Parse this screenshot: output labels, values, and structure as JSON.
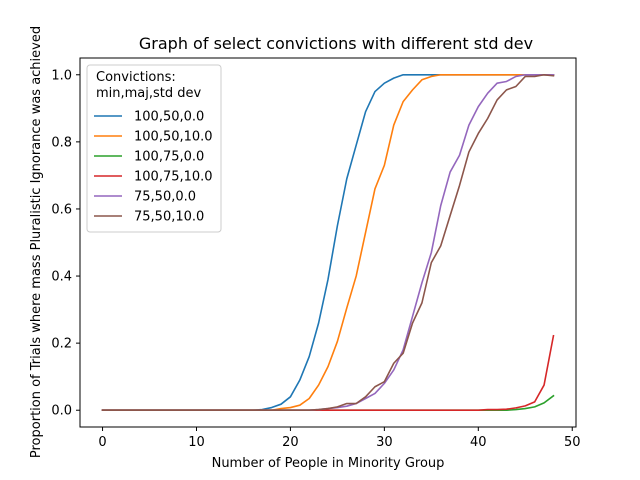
{
  "chart_data": {
    "type": "line",
    "title": "Graph of select convictions with different std dev",
    "xlabel": "Number of People in Minority Group",
    "ylabel": "Proportion of Trials where mass Pluralistic Ignorance was achieved",
    "xlim": [
      -2.4,
      50.4
    ],
    "ylim": [
      -0.05,
      1.05
    ],
    "xticks": [
      0,
      10,
      20,
      30,
      40,
      50
    ],
    "yticks": [
      0.0,
      0.2,
      0.4,
      0.6,
      0.8,
      1.0
    ],
    "grid": false,
    "legend": {
      "placement": "upper-left",
      "title_line1": "Convictions:",
      "title_line2": "min,maj,std dev"
    },
    "series": [
      {
        "name": "100,50,0.0",
        "color": "#1f77b4",
        "x": [
          0,
          1,
          2,
          3,
          4,
          5,
          6,
          7,
          8,
          9,
          10,
          11,
          12,
          13,
          14,
          15,
          16,
          17,
          18,
          19,
          20,
          21,
          22,
          23,
          24,
          25,
          26,
          27,
          28,
          29,
          30,
          31,
          32,
          33,
          34,
          35,
          36,
          37,
          38,
          39,
          40,
          41,
          42,
          43,
          44,
          45,
          46,
          47,
          48
        ],
        "y": [
          0,
          0,
          0,
          0,
          0,
          0,
          0,
          0,
          0,
          0,
          0,
          0,
          0,
          0,
          0,
          0,
          0,
          0.002,
          0.008,
          0.018,
          0.04,
          0.09,
          0.16,
          0.26,
          0.39,
          0.55,
          0.69,
          0.79,
          0.89,
          0.95,
          0.975,
          0.99,
          1.0,
          1.0,
          1.0,
          1.0,
          1.0,
          1.0,
          1.0,
          1.0,
          1.0,
          1.0,
          1.0,
          1.0,
          1.0,
          1.0,
          1.0,
          1.0,
          1.0
        ]
      },
      {
        "name": "100,50,10.0",
        "color": "#ff7f0e",
        "x": [
          0,
          1,
          2,
          3,
          4,
          5,
          6,
          7,
          8,
          9,
          10,
          11,
          12,
          13,
          14,
          15,
          16,
          17,
          18,
          19,
          20,
          21,
          22,
          23,
          24,
          25,
          26,
          27,
          28,
          29,
          30,
          31,
          32,
          33,
          34,
          35,
          36,
          37,
          38,
          39,
          40,
          41,
          42,
          43,
          44,
          45,
          46,
          47,
          48
        ],
        "y": [
          0,
          0,
          0,
          0,
          0,
          0,
          0,
          0,
          0,
          0,
          0,
          0,
          0,
          0,
          0,
          0,
          0,
          0,
          0,
          0.005,
          0.008,
          0.015,
          0.035,
          0.075,
          0.13,
          0.205,
          0.305,
          0.4,
          0.53,
          0.66,
          0.73,
          0.85,
          0.92,
          0.955,
          0.985,
          0.995,
          1.0,
          1.0,
          1.0,
          1.0,
          1.0,
          1.0,
          1.0,
          1.0,
          1.0,
          1.0,
          1.0,
          1.0,
          1.0
        ]
      },
      {
        "name": "100,75,0.0",
        "color": "#2ca02c",
        "x": [
          0,
          1,
          2,
          3,
          4,
          5,
          6,
          7,
          8,
          9,
          10,
          11,
          12,
          13,
          14,
          15,
          16,
          17,
          18,
          19,
          20,
          21,
          22,
          23,
          24,
          25,
          26,
          27,
          28,
          29,
          30,
          31,
          32,
          33,
          34,
          35,
          36,
          37,
          38,
          39,
          40,
          41,
          42,
          43,
          44,
          45,
          46,
          47,
          48
        ],
        "y": [
          0,
          0,
          0,
          0,
          0,
          0,
          0,
          0,
          0,
          0,
          0,
          0,
          0,
          0,
          0,
          0,
          0,
          0,
          0,
          0,
          0,
          0,
          0,
          0,
          0,
          0,
          0,
          0,
          0,
          0,
          0,
          0,
          0,
          0,
          0,
          0,
          0,
          0,
          0,
          0,
          0,
          0,
          0,
          0,
          0.002,
          0.005,
          0.01,
          0.022,
          0.043
        ]
      },
      {
        "name": "100,75,10.0",
        "color": "#d62728",
        "x": [
          0,
          1,
          2,
          3,
          4,
          5,
          6,
          7,
          8,
          9,
          10,
          11,
          12,
          13,
          14,
          15,
          16,
          17,
          18,
          19,
          20,
          21,
          22,
          23,
          24,
          25,
          26,
          27,
          28,
          29,
          30,
          31,
          32,
          33,
          34,
          35,
          36,
          37,
          38,
          39,
          40,
          41,
          42,
          43,
          44,
          45,
          46,
          47,
          48
        ],
        "y": [
          0,
          0,
          0,
          0,
          0,
          0,
          0,
          0,
          0,
          0,
          0,
          0,
          0,
          0,
          0,
          0,
          0,
          0,
          0,
          0,
          0,
          0,
          0,
          0,
          0,
          0,
          0,
          0,
          0,
          0,
          0,
          0,
          0,
          0,
          0,
          0,
          0,
          0,
          0,
          0,
          0,
          0.002,
          0.002,
          0.003,
          0.007,
          0.013,
          0.025,
          0.075,
          0.222
        ]
      },
      {
        "name": "75,50,0.0",
        "color": "#9467bd",
        "x": [
          0,
          1,
          2,
          3,
          4,
          5,
          6,
          7,
          8,
          9,
          10,
          11,
          12,
          13,
          14,
          15,
          16,
          17,
          18,
          19,
          20,
          21,
          22,
          23,
          24,
          25,
          26,
          27,
          28,
          29,
          30,
          31,
          32,
          33,
          34,
          35,
          36,
          37,
          38,
          39,
          40,
          41,
          42,
          43,
          44,
          45,
          46,
          47,
          48
        ],
        "y": [
          0,
          0,
          0,
          0,
          0,
          0,
          0,
          0,
          0,
          0,
          0,
          0,
          0,
          0,
          0,
          0,
          0,
          0,
          0,
          0,
          0,
          0,
          0,
          0.002,
          0.005,
          0.008,
          0.012,
          0.02,
          0.035,
          0.05,
          0.08,
          0.12,
          0.18,
          0.28,
          0.38,
          0.47,
          0.61,
          0.71,
          0.76,
          0.85,
          0.905,
          0.945,
          0.975,
          0.98,
          0.995,
          1.0,
          1.0,
          1.0,
          1.0
        ]
      },
      {
        "name": "75,50,10.0",
        "color": "#8c564b",
        "x": [
          0,
          1,
          2,
          3,
          4,
          5,
          6,
          7,
          8,
          9,
          10,
          11,
          12,
          13,
          14,
          15,
          16,
          17,
          18,
          19,
          20,
          21,
          22,
          23,
          24,
          25,
          26,
          27,
          28,
          29,
          30,
          31,
          32,
          33,
          34,
          35,
          36,
          37,
          38,
          39,
          40,
          41,
          42,
          43,
          44,
          45,
          46,
          47,
          48
        ],
        "y": [
          0,
          0,
          0,
          0,
          0,
          0,
          0,
          0,
          0,
          0,
          0,
          0,
          0,
          0,
          0,
          0,
          0,
          0,
          0,
          0,
          0,
          0,
          0,
          0.002,
          0.005,
          0.01,
          0.02,
          0.02,
          0.04,
          0.07,
          0.085,
          0.14,
          0.17,
          0.26,
          0.32,
          0.44,
          0.49,
          0.58,
          0.67,
          0.77,
          0.825,
          0.87,
          0.925,
          0.955,
          0.965,
          0.995,
          0.995,
          1.0,
          0.997
        ]
      }
    ]
  }
}
